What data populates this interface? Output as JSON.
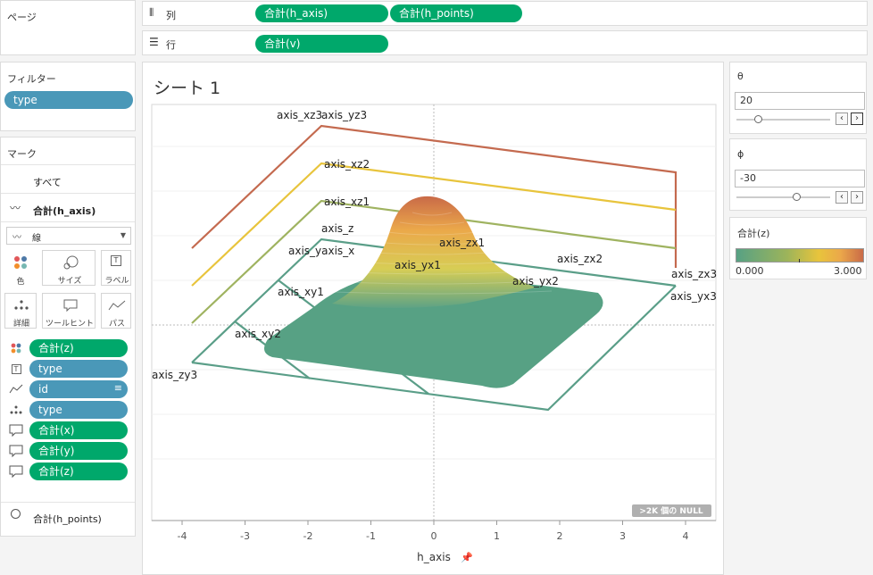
{
  "shelves": {
    "pages_label": "ページ",
    "columns_label": "列",
    "rows_label": "行",
    "column_pills": [
      "合計(h_axis)",
      "合計(h_points)"
    ],
    "row_pills": [
      "合計(v)"
    ]
  },
  "filters": {
    "title": "フィルター",
    "items": [
      "type"
    ]
  },
  "marks": {
    "title": "マーク",
    "all_label": "すべて",
    "layer1_label": "合計(h_axis)",
    "mark_type": "線",
    "cards": [
      "色",
      "サイズ",
      "ラベル",
      "詳細",
      "ツールヒント",
      "パス"
    ],
    "fields": [
      {
        "icon": "color-icon",
        "label": "合計(z)",
        "kind": "green"
      },
      {
        "icon": "text-icon",
        "label": "type",
        "kind": "blue"
      },
      {
        "icon": "path-icon",
        "label": "id",
        "kind": "blue"
      },
      {
        "icon": "detail-icon",
        "label": "type",
        "kind": "blue"
      },
      {
        "icon": "tooltip-icon",
        "label": "合計(x)",
        "kind": "green"
      },
      {
        "icon": "tooltip-icon",
        "label": "合計(y)",
        "kind": "green"
      },
      {
        "icon": "tooltip-icon",
        "label": "合計(z)",
        "kind": "green"
      }
    ],
    "layer2_label": "合計(h_points)"
  },
  "sheet": {
    "title": "シート 1",
    "null_badge": ">2K 個の NULL",
    "xaxis_label": "h_axis"
  },
  "params": {
    "theta_label": "θ",
    "theta_value": "20",
    "phi_label": "ϕ",
    "phi_value": "-30",
    "color_legend_title": "合計(z)",
    "color_min": "0.000",
    "color_max": "3.000"
  },
  "colors": {
    "green_pill": "#00a86b",
    "blue_pill": "#4a98b8",
    "axis_x": "#5a9e88",
    "axis_y": "#c46a4f",
    "surface_low": "#57a184",
    "surface_mid": "#e8c43c",
    "surface_high": "#c96a48"
  },
  "chart_data": {
    "type": "line",
    "x_ticks": [
      "-4",
      "-3",
      "-2",
      "-1",
      "0",
      "1",
      "2",
      "3",
      "4"
    ],
    "xlabel": "h_axis",
    "xlim": [
      -4.4,
      4.4
    ],
    "axis_labels": [
      "axis_xz3",
      "axis_yz3",
      "axis_xz2",
      "axis_xz1",
      "axis_z",
      "axis_yaxis_x",
      "axis_zx1",
      "axis_yx1",
      "axis_zx2",
      "axis_yx2",
      "axis_xy1",
      "axis_zx3",
      "axis_yx3",
      "axis_xy2",
      "axis_zy3"
    ],
    "color_range": [
      0,
      3
    ]
  }
}
